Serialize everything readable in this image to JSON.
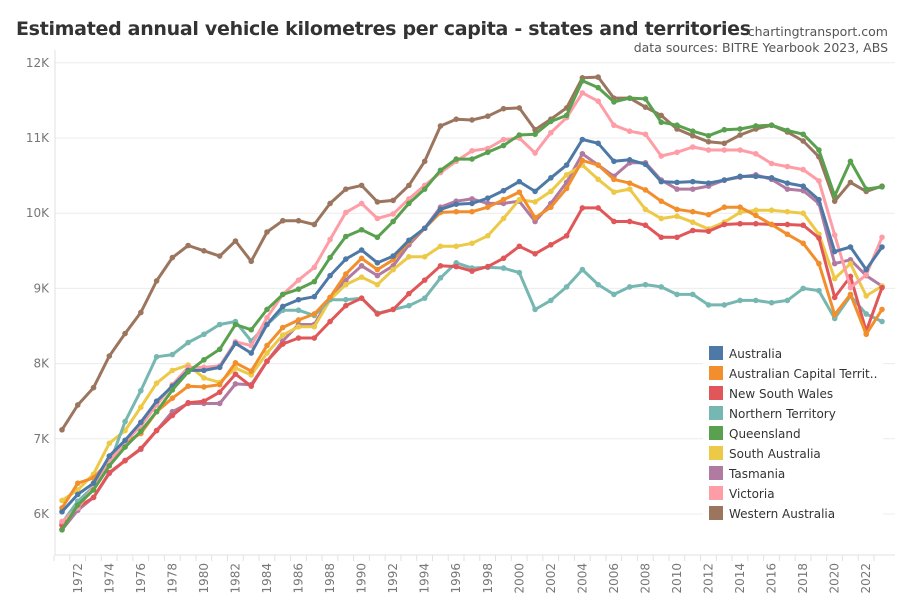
{
  "chart_data": {
    "type": "line",
    "title": "Estimated annual vehicle kilometres per capita - states and territories",
    "subtitle": [
      "chartingtransport.com",
      "data sources: BITRE Yearbook 2023, ABS"
    ],
    "xlabel": "",
    "ylabel": "",
    "ylim": [
      5700,
      12100
    ],
    "xlim": [
      1971,
      2023
    ],
    "yticks": [
      6000,
      7000,
      8000,
      9000,
      10000,
      11000,
      12000
    ],
    "ytick_labels": [
      "6K",
      "7K",
      "8K",
      "9K",
      "10K",
      "11K",
      "12K"
    ],
    "xtick_labels": [
      "1972",
      "1974",
      "1976",
      "1978",
      "1980",
      "1982",
      "1984",
      "1986",
      "1988",
      "1990",
      "1992",
      "1994",
      "1996",
      "1998",
      "2000",
      "2002",
      "2004",
      "2006",
      "2008",
      "2010",
      "2012",
      "2014",
      "2016",
      "2018",
      "2020",
      "2022"
    ],
    "grid": true,
    "legend": "bottom-right",
    "x": [
      1971,
      1972,
      1973,
      1974,
      1975,
      1976,
      1977,
      1978,
      1979,
      1980,
      1981,
      1982,
      1983,
      1984,
      1985,
      1986,
      1987,
      1988,
      1989,
      1990,
      1991,
      1992,
      1993,
      1994,
      1995,
      1996,
      1997,
      1998,
      1999,
      2000,
      2001,
      2002,
      2003,
      2004,
      2005,
      2006,
      2007,
      2008,
      2009,
      2010,
      2011,
      2012,
      2013,
      2014,
      2015,
      2016,
      2017,
      2018,
      2019,
      2020,
      2021,
      2022,
      2023
    ],
    "series": [
      {
        "name": "Tasmania",
        "legend_label": "Tasmania",
        "color": "#b07aa1",
        "values": [
          5790,
          6050,
          6220,
          6540,
          6710,
          6860,
          7110,
          7360,
          7470,
          7470,
          7470,
          7730,
          7720,
          8030,
          8300,
          8520,
          8520,
          8880,
          9110,
          9300,
          9170,
          9300,
          9580,
          9800,
          10080,
          10160,
          10190,
          10130,
          10130,
          10160,
          9890,
          10130,
          10410,
          10790,
          10640,
          10490,
          10670,
          10670,
          10440,
          10320,
          10320,
          10360,
          10440,
          10480,
          10510,
          10450,
          10320,
          10300,
          10130,
          9330,
          9380,
          9170,
          9030
        ]
      },
      {
        "name": "South Australia",
        "legend_label": "South Australia",
        "color": "#edc948",
        "values": [
          6180,
          6320,
          6530,
          6940,
          7110,
          7420,
          7740,
          7910,
          7980,
          7810,
          7750,
          7940,
          7850,
          8140,
          8380,
          8490,
          8490,
          8850,
          9050,
          9150,
          9050,
          9250,
          9420,
          9420,
          9560,
          9560,
          9600,
          9700,
          9930,
          10180,
          10150,
          10290,
          10510,
          10640,
          10450,
          10280,
          10320,
          10050,
          9930,
          9960,
          9880,
          9790,
          9880,
          10010,
          10040,
          10040,
          10020,
          10000,
          9720,
          9130,
          9330,
          8900,
          9030
        ]
      },
      {
        "name": "Northern Territory",
        "legend_label": "Northern Territory",
        "color": "#76b7b2",
        "values": [
          5880,
          6170,
          6360,
          6660,
          7230,
          7640,
          8090,
          8120,
          8280,
          8390,
          8520,
          8560,
          8300,
          8520,
          8710,
          8710,
          8640,
          8850,
          8850,
          8870,
          8670,
          8720,
          8770,
          8870,
          9140,
          9340,
          9270,
          9280,
          9270,
          9210,
          8720,
          8840,
          9020,
          9250,
          9050,
          8920,
          9020,
          9050,
          9020,
          8920,
          8920,
          8780,
          8780,
          8840,
          8840,
          8810,
          8840,
          9000,
          8970,
          8600,
          8900,
          8660,
          8560
        ]
      },
      {
        "name": "New South Wales",
        "legend_label": "New South Wales",
        "color": "#e15759",
        "values": [
          5850,
          6090,
          6220,
          6550,
          6710,
          6870,
          7110,
          7310,
          7480,
          7500,
          7620,
          7860,
          7700,
          8030,
          8260,
          8340,
          8340,
          8560,
          8770,
          8870,
          8660,
          8720,
          8930,
          9110,
          9300,
          9290,
          9230,
          9290,
          9400,
          9560,
          9460,
          9580,
          9700,
          10070,
          10070,
          9890,
          9890,
          9840,
          9680,
          9680,
          9770,
          9760,
          9850,
          9860,
          9860,
          9850,
          9850,
          9840,
          9670,
          8880,
          9160,
          8430,
          9010
        ]
      },
      {
        "name": "Australian Capital Territory",
        "legend_label": "Australian Capital Territ..",
        "color": "#f28e2b",
        "values": [
          6080,
          6410,
          6480,
          6710,
          6950,
          7070,
          7360,
          7540,
          7700,
          7690,
          7720,
          8010,
          7900,
          8240,
          8480,
          8580,
          8660,
          8880,
          9190,
          9400,
          9250,
          9380,
          9620,
          9800,
          10010,
          10020,
          10020,
          10080,
          10180,
          10280,
          9940,
          10080,
          10330,
          10700,
          10640,
          10450,
          10400,
          10310,
          10160,
          10050,
          10020,
          9980,
          10080,
          10080,
          9970,
          9850,
          9720,
          9600,
          9330,
          8650,
          8920,
          8390,
          8720
        ]
      },
      {
        "name": "Victoria",
        "legend_label": "Victoria",
        "color": "#ff9da7",
        "values": [
          5900,
          6080,
          6360,
          6690,
          6960,
          7170,
          7450,
          7720,
          7950,
          7950,
          7970,
          8290,
          8240,
          8610,
          8920,
          9110,
          9280,
          9650,
          10010,
          10130,
          9930,
          9990,
          10190,
          10370,
          10540,
          10690,
          10830,
          10860,
          10980,
          11000,
          10800,
          11070,
          11270,
          11600,
          11490,
          11170,
          11090,
          11050,
          10760,
          10810,
          10880,
          10840,
          10840,
          10840,
          10790,
          10660,
          10620,
          10580,
          10430,
          9710,
          9010,
          9180,
          9680
        ]
      },
      {
        "name": "Australia",
        "legend_label": "Australia",
        "color": "#4e79a7",
        "values": [
          6030,
          6260,
          6410,
          6770,
          6980,
          7220,
          7500,
          7700,
          7910,
          7910,
          7950,
          8270,
          8140,
          8520,
          8760,
          8850,
          8890,
          9170,
          9390,
          9510,
          9340,
          9430,
          9640,
          9800,
          10050,
          10120,
          10130,
          10200,
          10300,
          10420,
          10290,
          10470,
          10640,
          10980,
          10930,
          10690,
          10710,
          10650,
          10420,
          10410,
          10420,
          10400,
          10440,
          10490,
          10490,
          10470,
          10400,
          10360,
          10180,
          9490,
          9550,
          9250,
          9550
        ]
      },
      {
        "name": "Western Australia",
        "legend_label": "Western Australia",
        "color": "#9c755f",
        "values": [
          7120,
          7450,
          7680,
          8100,
          8400,
          8680,
          9100,
          9410,
          9570,
          9500,
          9430,
          9630,
          9360,
          9750,
          9900,
          9900,
          9850,
          10130,
          10320,
          10370,
          10150,
          10170,
          10370,
          10690,
          11160,
          11250,
          11240,
          11290,
          11390,
          11400,
          11110,
          11250,
          11400,
          11800,
          11810,
          11530,
          11530,
          11410,
          11300,
          11120,
          11030,
          10950,
          10930,
          11040,
          11120,
          11170,
          11080,
          10960,
          10750,
          10160,
          10410,
          10290,
          10360
        ]
      },
      {
        "name": "Queensland",
        "legend_label": "Queensland",
        "color": "#59a14f",
        "values": [
          5790,
          6120,
          6320,
          6640,
          6890,
          7100,
          7360,
          7650,
          7890,
          8050,
          8190,
          8520,
          8450,
          8720,
          8920,
          8990,
          9090,
          9410,
          9690,
          9780,
          9680,
          9890,
          10130,
          10320,
          10570,
          10720,
          10720,
          10810,
          10900,
          11040,
          11050,
          11220,
          11300,
          11760,
          11670,
          11480,
          11530,
          11520,
          11210,
          11170,
          11090,
          11030,
          11110,
          11120,
          11160,
          11170,
          11100,
          11050,
          10840,
          10230,
          10690,
          10320,
          10350
        ]
      }
    ],
    "legend_order": [
      "Australia",
      "Australian Capital Territory",
      "New South Wales",
      "Northern Territory",
      "Queensland",
      "South Australia",
      "Tasmania",
      "Victoria",
      "Western Australia"
    ]
  }
}
